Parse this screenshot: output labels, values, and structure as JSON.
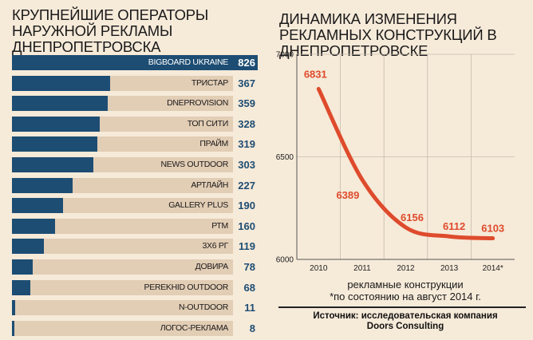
{
  "chart_data": [
    {
      "type": "bar",
      "title": "КРУПНЕЙШИЕ ОПЕРАТОРЫ НАРУЖНОЙ РЕКЛАМЫ ДНЕПРОПЕТРОВСКА",
      "categories": [
        "BIGBOARD UKRAINE",
        "ТРИСТАР",
        "DNEPROVISION",
        "ТОП СИТИ",
        "ПРАЙМ",
        "NEWS OUTDOOR",
        "АРТЛАЙН",
        "GALLERY PLUS",
        "РТМ",
        "3Х6 РГ",
        "ДОВИРА",
        "PEREKHID OUTDOOR",
        "N-OUTDOOR",
        "ЛОГОС-РЕКЛАМА"
      ],
      "values": [
        826,
        367,
        359,
        328,
        319,
        303,
        227,
        190,
        160,
        119,
        78,
        68,
        11,
        8
      ],
      "value_labels": [
        "826",
        "367",
        "359",
        "328",
        "319",
        "303",
        "227",
        "190",
        "160",
        "119",
        "78",
        "68",
        "11",
        "8"
      ],
      "orientation": "horizontal",
      "xlim": [
        0,
        826
      ],
      "colors": {
        "bar": "#1d4d73",
        "track": "#e2cdb5"
      }
    },
    {
      "type": "line",
      "title": "ДИНАМИКА ИЗМЕНЕНИЯ РЕКЛАМНЫХ КОНСТРУКЦИЙ В ДНЕПРОПЕТРОВСКЕ",
      "x": [
        "2010",
        "2011",
        "2012",
        "2013",
        "2014*"
      ],
      "y": [
        6831,
        6389,
        6156,
        6112,
        6103
      ],
      "point_labels": [
        "6831",
        "6389",
        "6156",
        "6112",
        "6103"
      ],
      "ylim": [
        6000,
        7000
      ],
      "yticks": [
        "6000",
        "6500",
        "7000"
      ],
      "xlabel": "рекламные конструкции",
      "footnote": "*по состоянию на август 2014 г.",
      "grid": true,
      "colors": {
        "line": "#de4b2c",
        "grid": "#c8bcae"
      }
    }
  ],
  "source": {
    "line1": "Источник: исследовательская компания",
    "line2": "Doors Consulting"
  }
}
